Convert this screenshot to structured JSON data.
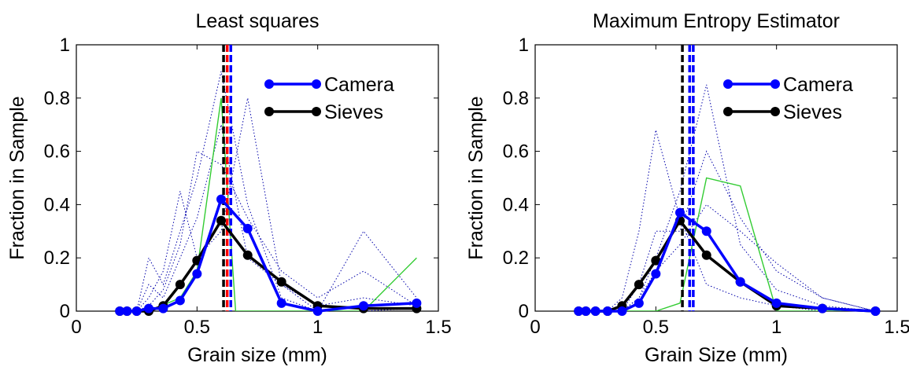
{
  "chart_data": [
    {
      "type": "line",
      "title": "Least squares",
      "xlabel": "Grain size (mm)",
      "ylabel": "Fraction in Sample",
      "xlim": [
        0,
        1.5
      ],
      "ylim": [
        0,
        1
      ],
      "xticks": [
        "0",
        "0.5",
        "1",
        "1.5"
      ],
      "yticks": [
        "0",
        "0.2",
        "0.4",
        "0.6",
        "0.8",
        "1"
      ],
      "grid": false,
      "legend_position": "top-right",
      "series": [
        {
          "name": "Camera",
          "color": "#0000ff",
          "style": "solid-marker",
          "x": [
            0.18,
            0.21,
            0.25,
            0.3,
            0.36,
            0.43,
            0.5,
            0.6,
            0.71,
            0.85,
            1.0,
            1.19,
            1.41
          ],
          "y": [
            0.0,
            0.0,
            0.0,
            0.01,
            0.01,
            0.04,
            0.14,
            0.42,
            0.31,
            0.03,
            0.0,
            0.02,
            0.03
          ]
        },
        {
          "name": "Sieves",
          "color": "#000000",
          "style": "solid-marker",
          "x": [
            0.18,
            0.21,
            0.25,
            0.3,
            0.36,
            0.43,
            0.5,
            0.6,
            0.71,
            0.85,
            1.0,
            1.19,
            1.41
          ],
          "y": [
            0.0,
            0.0,
            0.0,
            0.0,
            0.02,
            0.1,
            0.19,
            0.34,
            0.21,
            0.11,
            0.02,
            0.01,
            0.01
          ]
        },
        {
          "color": "#33cc33",
          "style": "thin",
          "x": [
            0.3,
            0.43,
            0.5,
            0.6,
            0.66,
            0.71,
            0.85,
            1.0,
            1.19,
            1.41
          ],
          "y": [
            0.0,
            0.05,
            0.15,
            0.8,
            0.0,
            0.0,
            0.0,
            0.0,
            0.0,
            0.2
          ]
        },
        {
          "color": "#0000aa",
          "style": "dotted",
          "x": [
            0.25,
            0.3,
            0.36,
            0.43,
            0.5,
            0.6,
            0.71,
            0.85,
            1.0,
            1.19,
            1.41
          ],
          "y": [
            0.0,
            0.2,
            0.1,
            0.3,
            0.5,
            0.9,
            0.4,
            0.05,
            0.0,
            0.3,
            0.05
          ]
        },
        {
          "color": "#0000aa",
          "style": "dotted",
          "x": [
            0.25,
            0.3,
            0.36,
            0.43,
            0.5,
            0.6,
            0.71,
            0.85,
            1.0,
            1.19,
            1.41
          ],
          "y": [
            0.0,
            0.05,
            0.15,
            0.45,
            0.2,
            0.3,
            0.8,
            0.1,
            0.02,
            0.05,
            0.02
          ]
        },
        {
          "color": "#0000aa",
          "style": "dotted",
          "x": [
            0.25,
            0.3,
            0.36,
            0.43,
            0.5,
            0.6,
            0.71,
            0.85,
            1.0,
            1.19,
            1.41
          ],
          "y": [
            0.0,
            0.02,
            0.08,
            0.25,
            0.6,
            0.55,
            0.35,
            0.15,
            0.05,
            0.15,
            0.02
          ]
        },
        {
          "color": "#0000aa",
          "style": "dotted",
          "x": [
            0.25,
            0.3,
            0.36,
            0.43,
            0.5,
            0.6,
            0.71,
            0.85,
            1.0,
            1.19,
            1.41
          ],
          "y": [
            0.0,
            0.1,
            0.05,
            0.2,
            0.35,
            0.7,
            0.2,
            0.1,
            0.0,
            0.0,
            0.01
          ]
        }
      ],
      "vlines": [
        {
          "x": 0.61,
          "color": "#000000"
        },
        {
          "x": 0.625,
          "color": "#ff0000"
        },
        {
          "x": 0.64,
          "color": "#0000ff"
        }
      ]
    },
    {
      "type": "line",
      "title": "Maximum Entropy Estimator",
      "xlabel": "Grain Size (mm)",
      "ylabel": "Fraction in Sample",
      "xlim": [
        0,
        1.5
      ],
      "ylim": [
        0,
        1
      ],
      "xticks": [
        "0",
        "0.5",
        "1",
        "1.5"
      ],
      "yticks": [
        "0",
        "0.2",
        "0.4",
        "0.6",
        "0.8",
        "1"
      ],
      "grid": false,
      "legend_position": "top-right",
      "series": [
        {
          "name": "Camera",
          "color": "#0000ff",
          "style": "solid-marker",
          "x": [
            0.18,
            0.21,
            0.25,
            0.3,
            0.36,
            0.43,
            0.5,
            0.6,
            0.71,
            0.85,
            1.0,
            1.19,
            1.41
          ],
          "y": [
            0.0,
            0.0,
            0.0,
            0.0,
            0.0,
            0.03,
            0.14,
            0.37,
            0.3,
            0.11,
            0.03,
            0.01,
            0.0
          ]
        },
        {
          "name": "Sieves",
          "color": "#000000",
          "style": "solid-marker",
          "x": [
            0.18,
            0.21,
            0.25,
            0.3,
            0.36,
            0.43,
            0.5,
            0.6,
            0.71,
            0.85,
            1.0,
            1.19,
            1.41
          ],
          "y": [
            0.0,
            0.0,
            0.0,
            0.0,
            0.02,
            0.1,
            0.19,
            0.34,
            0.21,
            0.11,
            0.02,
            0.01,
            0.0
          ]
        },
        {
          "color": "#33cc33",
          "style": "thin",
          "x": [
            0.36,
            0.5,
            0.6,
            0.71,
            0.85,
            1.0,
            1.19,
            1.41
          ],
          "y": [
            0.0,
            0.0,
            0.03,
            0.5,
            0.47,
            0.0,
            0.0,
            0.0
          ]
        },
        {
          "color": "#0000aa",
          "style": "dotted",
          "x": [
            0.3,
            0.36,
            0.43,
            0.5,
            0.6,
            0.71,
            0.85,
            1.0,
            1.19,
            1.41
          ],
          "y": [
            0.0,
            0.05,
            0.3,
            0.68,
            0.35,
            0.1,
            0.05,
            0.02,
            0.0,
            0.0
          ]
        },
        {
          "color": "#0000aa",
          "style": "dotted",
          "x": [
            0.36,
            0.43,
            0.5,
            0.6,
            0.71,
            0.85,
            1.0,
            1.19,
            1.41
          ],
          "y": [
            0.0,
            0.05,
            0.2,
            0.45,
            0.85,
            0.25,
            0.08,
            0.02,
            0.0
          ]
        },
        {
          "color": "#0000aa",
          "style": "dotted",
          "x": [
            0.36,
            0.43,
            0.5,
            0.6,
            0.71,
            0.85,
            1.0,
            1.19,
            1.41
          ],
          "y": [
            0.0,
            0.1,
            0.3,
            0.3,
            0.6,
            0.35,
            0.15,
            0.05,
            0.0
          ]
        },
        {
          "color": "#0000aa",
          "style": "dotted",
          "x": [
            0.36,
            0.43,
            0.5,
            0.6,
            0.71,
            0.85,
            1.0,
            1.19,
            1.41
          ],
          "y": [
            0.0,
            0.05,
            0.15,
            0.25,
            0.4,
            0.3,
            0.18,
            0.05,
            0.0
          ]
        }
      ],
      "vlines": [
        {
          "x": 0.61,
          "color": "#000000"
        },
        {
          "x": 0.64,
          "color": "#0000ff"
        },
        {
          "x": 0.655,
          "color": "#0000ff"
        }
      ]
    }
  ]
}
